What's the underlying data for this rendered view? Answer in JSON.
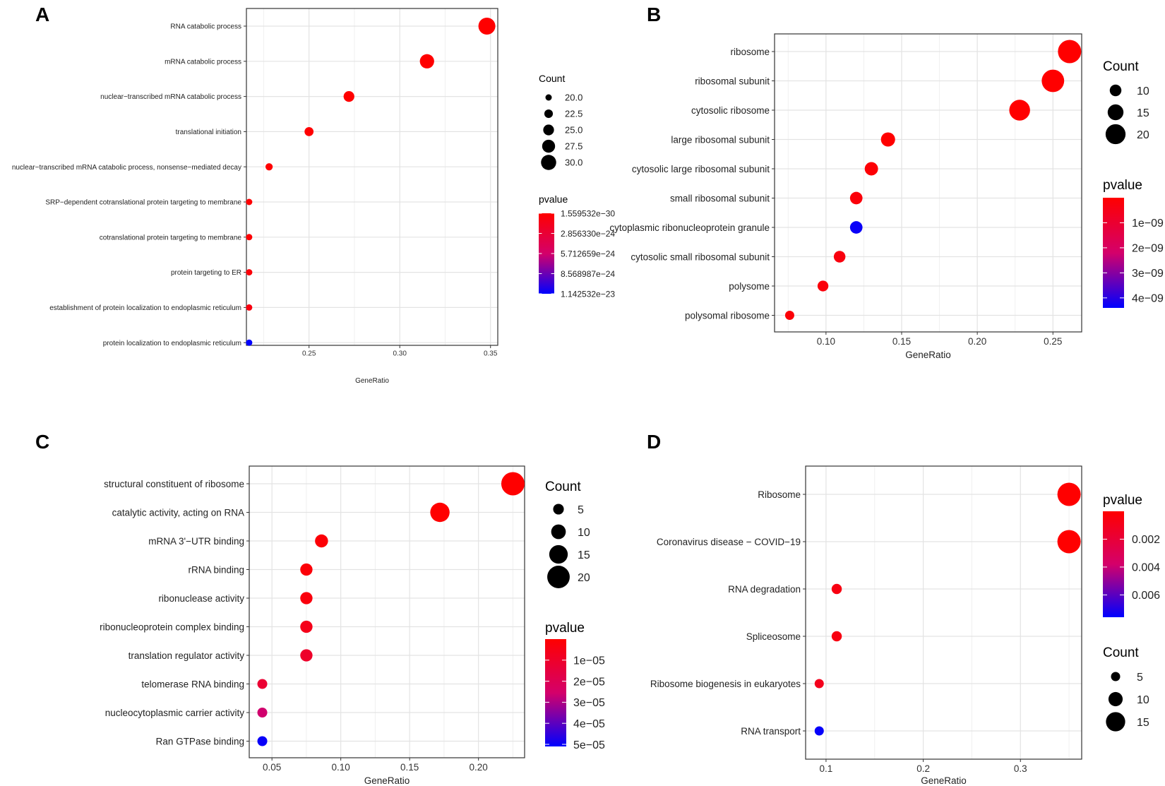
{
  "chart_data": [
    {
      "id": "A",
      "panel_label": "A",
      "type": "scatter",
      "xlabel": "GeneRatio",
      "xticks": [
        0.25,
        0.3,
        0.35
      ],
      "xtick_labels": [
        "0.25",
        "0.30",
        "0.35"
      ],
      "xlim": [
        0.2155,
        0.354
      ],
      "categories": [
        "RNA catabolic process",
        "mRNA catabolic process",
        "nuclear−transcribed mRNA catabolic process",
        "translational initiation",
        "nuclear−transcribed mRNA catabolic process, nonsense−mediated decay",
        "SRP−dependent cotranslational protein targeting to membrane",
        "cotranslational protein targeting to membrane",
        "protein targeting to ER",
        "establishment of protein localization to endoplasmic reticulum",
        "protein localization to endoplasmic reticulum"
      ],
      "gene_ratio": [
        0.348,
        0.315,
        0.272,
        0.25,
        0.228,
        0.217,
        0.217,
        0.217,
        0.217,
        0.217
      ],
      "count": [
        32,
        29,
        25,
        23,
        21,
        20,
        20,
        20,
        20,
        20
      ],
      "pvalue": [
        1.6e-30,
        1e-27,
        1e-26,
        3e-26,
        5e-26,
        1.5e-25,
        2e-25,
        5e-25,
        8e-25,
        1.14e-23
      ],
      "pvalue_range": [
        1.559532e-30,
        1.142532e-23
      ],
      "size_legend": {
        "title": "Count",
        "values": [
          20.0,
          22.5,
          25.0,
          27.5,
          30.0
        ],
        "labels": [
          "20.0",
          "22.5",
          "25.0",
          "27.5",
          "30.0"
        ],
        "range": [
          20,
          32
        ]
      },
      "color_legend": {
        "title": "pvalue",
        "ticks": [
          1.559532e-30,
          2.85633e-24,
          5.712659e-24,
          8.568987e-24,
          1.142532e-23
        ],
        "labels": [
          "1.559532e−30",
          "2.856330e−24",
          "5.712659e−24",
          "8.568987e−24",
          "1.142532e−23"
        ]
      }
    },
    {
      "id": "B",
      "panel_label": "B",
      "type": "scatter",
      "xlabel": "GeneRatio",
      "xticks": [
        0.1,
        0.15,
        0.2,
        0.25
      ],
      "xtick_labels": [
        "0.10",
        "0.15",
        "0.20",
        "0.25"
      ],
      "xlim": [
        0.066,
        0.269
      ],
      "categories": [
        "ribosome",
        "ribosomal subunit",
        "cytosolic ribosome",
        "large ribosomal subunit",
        "cytosolic large ribosomal subunit",
        "small ribosomal subunit",
        "cytoplasmic ribonucleoprotein granule",
        "cytosolic small ribosomal subunit",
        "polysome",
        "polysomal ribosome"
      ],
      "gene_ratio": [
        0.261,
        0.25,
        0.228,
        0.141,
        0.13,
        0.12,
        0.12,
        0.109,
        0.098,
        0.076
      ],
      "count": [
        24,
        23,
        21,
        13,
        12,
        11,
        11,
        10,
        9,
        7
      ],
      "pvalue": [
        1e-12,
        1e-12,
        5e-12,
        1e-11,
        1e-10,
        2e-10,
        4.3e-09,
        3e-10,
        2e-10,
        1.5e-10
      ],
      "pvalue_range": [
        1e-12,
        4.4e-09
      ],
      "size_legend": {
        "title": "Count",
        "values": [
          10,
          15,
          20
        ],
        "labels": [
          "10",
          "15",
          "20"
        ],
        "range": [
          7,
          24
        ]
      },
      "color_legend": {
        "title": "pvalue",
        "ticks": [
          1e-09,
          2e-09,
          3e-09,
          4e-09
        ],
        "labels": [
          "1e−09",
          "2e−09",
          "3e−09",
          "4e−09"
        ]
      }
    },
    {
      "id": "C",
      "panel_label": "C",
      "type": "scatter",
      "xlabel": "GeneRatio",
      "xticks": [
        0.05,
        0.1,
        0.15,
        0.2
      ],
      "xtick_labels": [
        "0.05",
        "0.10",
        "0.15",
        "0.20"
      ],
      "xlim": [
        0.0335,
        0.2335
      ],
      "categories": [
        "structural constituent of ribosome",
        "catalytic activity, acting on RNA",
        "mRNA 3'−UTR binding",
        "rRNA binding",
        "ribonuclease activity",
        "ribonucleoprotein complex binding",
        "translation regulator activity",
        "telomerase RNA binding",
        "nucleocytoplasmic carrier activity",
        "Ran GTPase binding"
      ],
      "gene_ratio": [
        0.225,
        0.172,
        0.086,
        0.075,
        0.075,
        0.075,
        0.075,
        0.043,
        0.043,
        0.043
      ],
      "count": [
        21,
        16,
        8,
        7,
        7,
        7,
        7,
        4,
        4,
        4
      ],
      "pvalue": [
        1e-08,
        1e-07,
        1.5e-06,
        2e-06,
        3e-06,
        6e-06,
        1e-05,
        1.2e-05,
        2.6e-05,
        5e-05
      ],
      "pvalue_range": [
        1e-08,
        5.1e-05
      ],
      "size_legend": {
        "title": "Count",
        "values": [
          5,
          10,
          15,
          20
        ],
        "labels": [
          "5",
          "10",
          "15",
          "20"
        ],
        "range": [
          4,
          21
        ]
      },
      "color_legend": {
        "title": "pvalue",
        "ticks": [
          1e-05,
          2e-05,
          3e-05,
          4e-05,
          5e-05
        ],
        "labels": [
          "1e−05",
          "2e−05",
          "3e−05",
          "4e−05",
          "5e−05"
        ]
      }
    },
    {
      "id": "D",
      "panel_label": "D",
      "type": "scatter",
      "xlabel": "GeneRatio",
      "xticks": [
        0.1,
        0.2,
        0.3
      ],
      "xtick_labels": [
        "0.1",
        "0.2",
        "0.3"
      ],
      "xlim": [
        0.079,
        0.363
      ],
      "categories": [
        "Ribosome",
        "Coronavirus disease − COVID−19",
        "RNA degradation",
        "Spliceosome",
        "Ribosome biogenesis in eukaryotes",
        "RNA transport"
      ],
      "gene_ratio": [
        0.35,
        0.35,
        0.111,
        0.111,
        0.093,
        0.093
      ],
      "count": [
        19,
        19,
        6,
        6,
        5,
        5
      ],
      "pvalue": [
        1e-08,
        1e-08,
        0.0006,
        0.0006,
        0.001,
        0.0075
      ],
      "pvalue_range": [
        0,
        0.0076
      ],
      "size_legend": {
        "title": "Count",
        "values": [
          5,
          10,
          15
        ],
        "labels": [
          "5",
          "10",
          "15"
        ],
        "range": [
          5,
          19
        ]
      },
      "color_legend": {
        "title": "pvalue",
        "ticks": [
          0.002,
          0.004,
          0.006
        ],
        "labels": [
          "0.002",
          "0.004",
          "0.006"
        ]
      }
    }
  ]
}
